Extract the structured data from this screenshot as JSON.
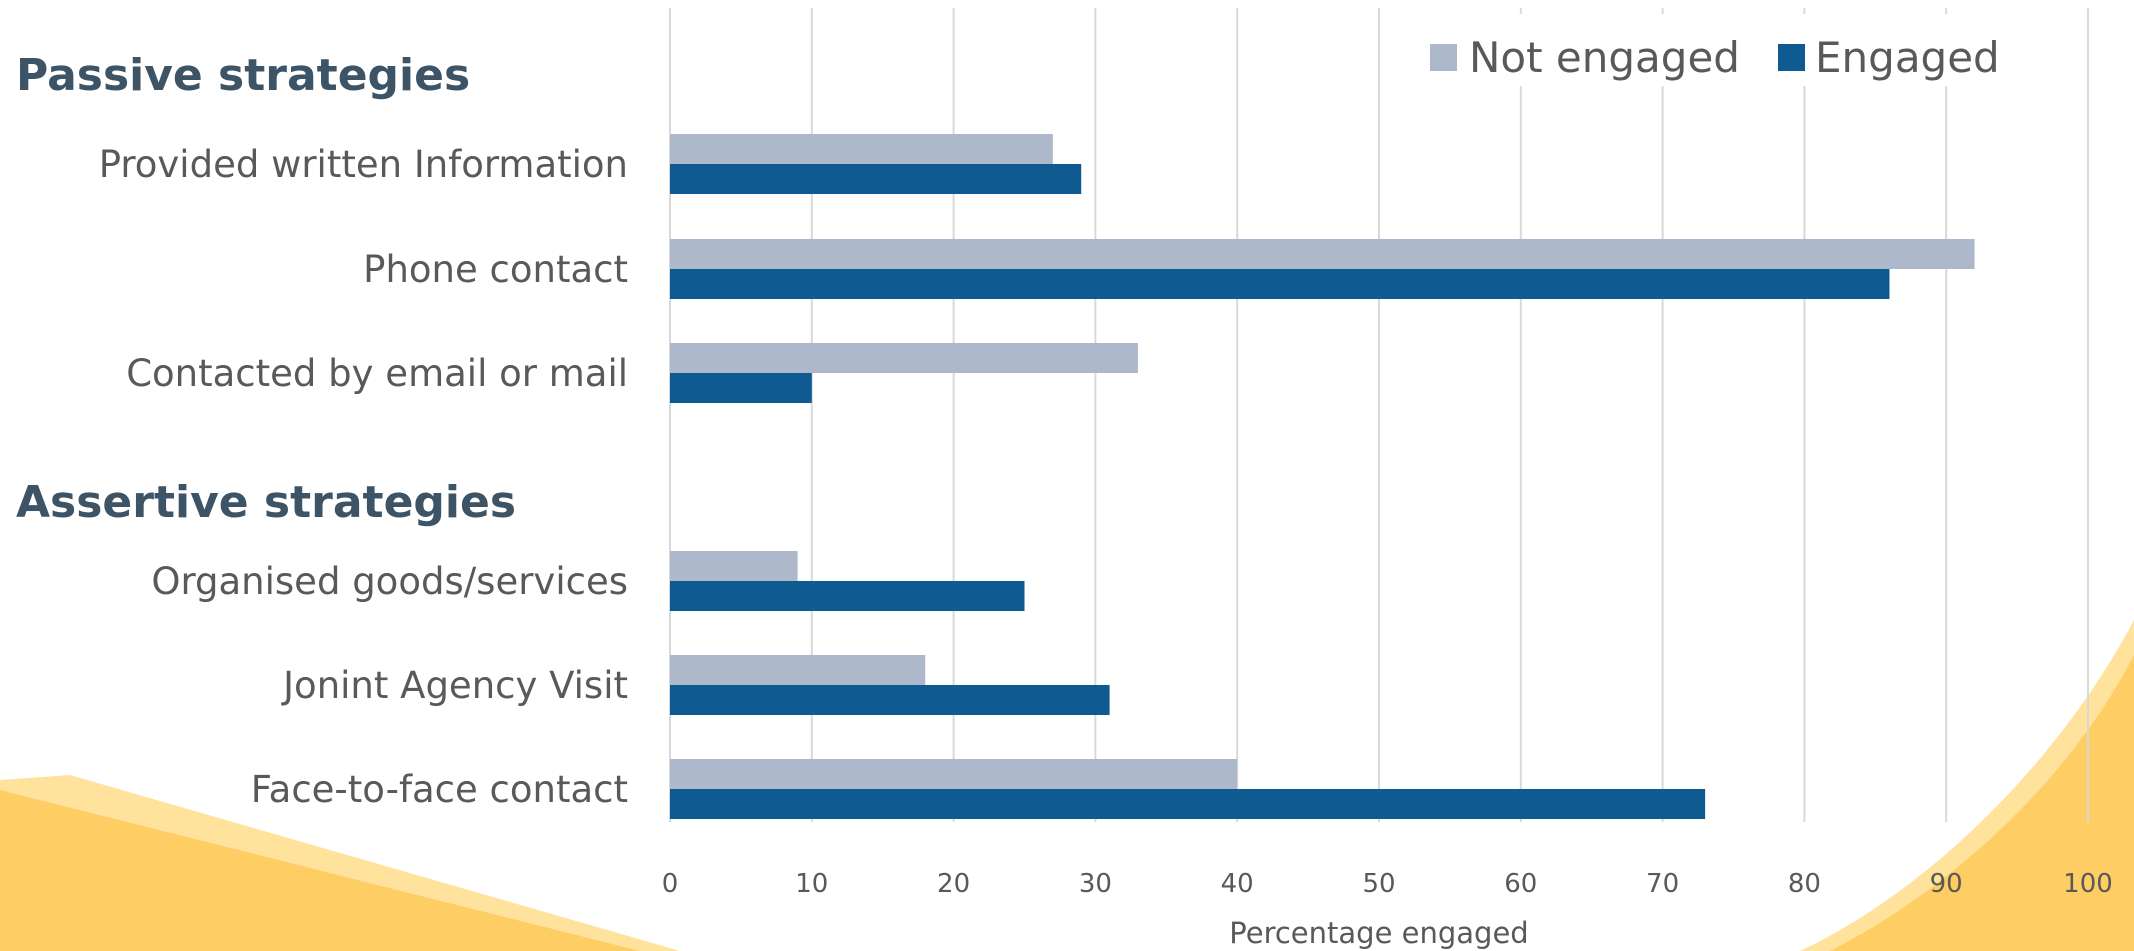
{
  "chart_data": {
    "type": "bar",
    "orientation": "horizontal",
    "xlabel": "Percentage engaged",
    "xlim": [
      0,
      100
    ],
    "xticks": [
      0,
      10,
      20,
      30,
      40,
      50,
      60,
      70,
      80,
      90,
      100
    ],
    "grid": true,
    "legend_position": "top-right",
    "groups": [
      {
        "title": "Passive strategies",
        "categories": [
          "Provided written Information",
          "Phone contact",
          "Contacted by email or mail"
        ]
      },
      {
        "title": "Assertive strategies",
        "categories": [
          "Organised goods/services",
          "Jonint Agency Visit",
          "Face-to-face contact"
        ]
      }
    ],
    "categories": [
      "Provided written Information",
      "Phone contact",
      "Contacted by email or mail",
      "Organised goods/services",
      "Jonint Agency Visit",
      "Face-to-face contact"
    ],
    "series": [
      {
        "name": "Not engaged",
        "color": "#adb9ca",
        "values": [
          27,
          92,
          33,
          9,
          18,
          40
        ]
      },
      {
        "name": "Engaged",
        "color": "#0e5a91",
        "values": [
          29,
          86,
          10,
          25,
          31,
          73
        ]
      }
    ]
  },
  "decor": {
    "accent_color": "#fece65",
    "accent_light": "#ffe39c"
  }
}
